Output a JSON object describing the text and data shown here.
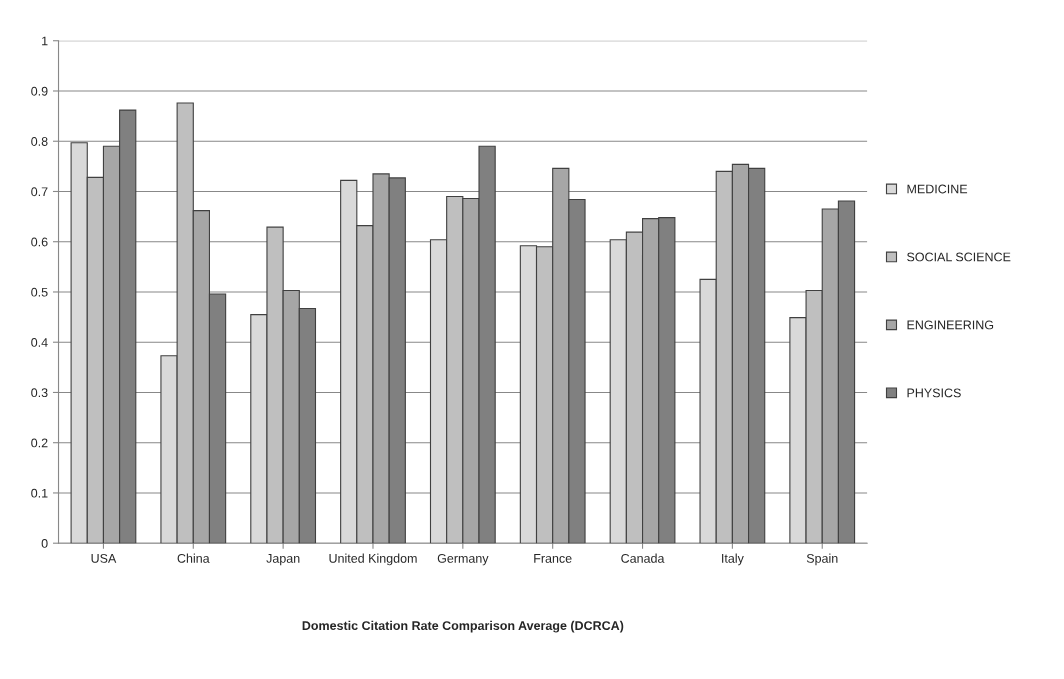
{
  "chart_data": {
    "type": "bar",
    "xlabel": "Domestic Citation Rate Comparison Average (DCRCA)",
    "categories": [
      "USA",
      "China",
      "Japan",
      "United Kingdom",
      "Germany",
      "France",
      "Canada",
      "Italy",
      "Spain"
    ],
    "series": [
      {
        "name": "MEDICINE",
        "color": "#d9d9d9",
        "values": [
          0.797,
          0.373,
          0.455,
          0.722,
          0.604,
          0.592,
          0.604,
          0.525,
          0.449
        ]
      },
      {
        "name": "SOCIAL SCIENCE",
        "color": "#bfbfbf",
        "values": [
          0.728,
          0.876,
          0.629,
          0.632,
          0.69,
          0.59,
          0.619,
          0.74,
          0.503
        ]
      },
      {
        "name": "ENGINEERING",
        "color": "#a6a6a6",
        "values": [
          0.79,
          0.662,
          0.503,
          0.735,
          0.686,
          0.746,
          0.646,
          0.754,
          0.665
        ]
      },
      {
        "name": "PHYSICS",
        "color": "#808080",
        "values": [
          0.862,
          0.496,
          0.467,
          0.727,
          0.79,
          0.684,
          0.648,
          0.746,
          0.681
        ]
      }
    ],
    "ylim": [
      0,
      1
    ],
    "yticks": [
      {
        "value": 0,
        "label": "0"
      },
      0.1,
      0.2,
      0.3,
      0.4,
      0.5,
      0.6,
      0.7,
      0.8,
      0.9,
      {
        "value": 1,
        "label": "1"
      }
    ],
    "grid": "y",
    "legend": "right"
  }
}
